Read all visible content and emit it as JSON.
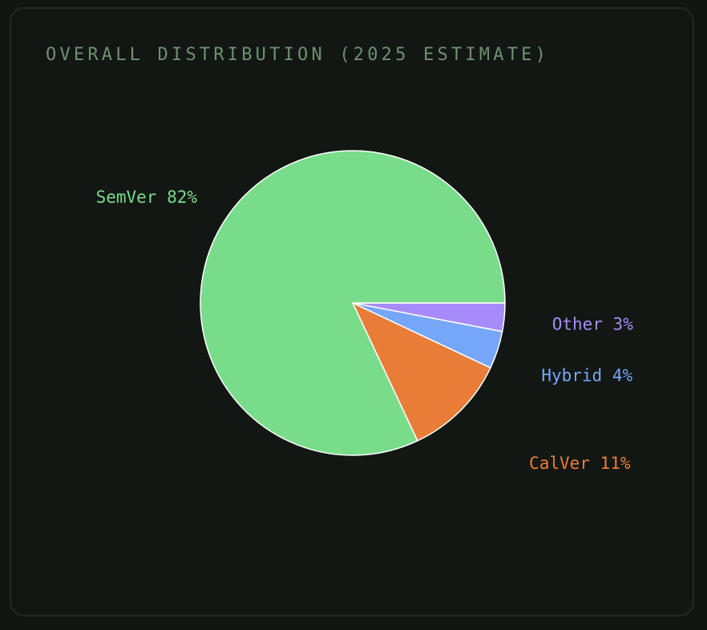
{
  "colors": {
    "page_background": "#111612",
    "card_background": "#121713",
    "card_border": "#232a24",
    "title": "#6f8f72",
    "slice_stroke": "#ffffff"
  },
  "chart_data": {
    "type": "pie",
    "title": "OVERALL DISTRIBUTION (2025 ESTIMATE)",
    "start_angle": "3 o'clock",
    "direction": "clockwise",
    "slices": [
      {
        "label": "Other",
        "value": 3,
        "display": "Other 3%",
        "color": "#a78bfa"
      },
      {
        "label": "Hybrid",
        "value": 4,
        "display": "Hybrid 4%",
        "color": "#76a6f7"
      },
      {
        "label": "CalVer",
        "value": 11,
        "display": "CalVer 11%",
        "color": "#e97d38"
      },
      {
        "label": "SemVer",
        "value": 82,
        "display": "SemVer 82%",
        "color": "#79dc8b"
      }
    ]
  }
}
